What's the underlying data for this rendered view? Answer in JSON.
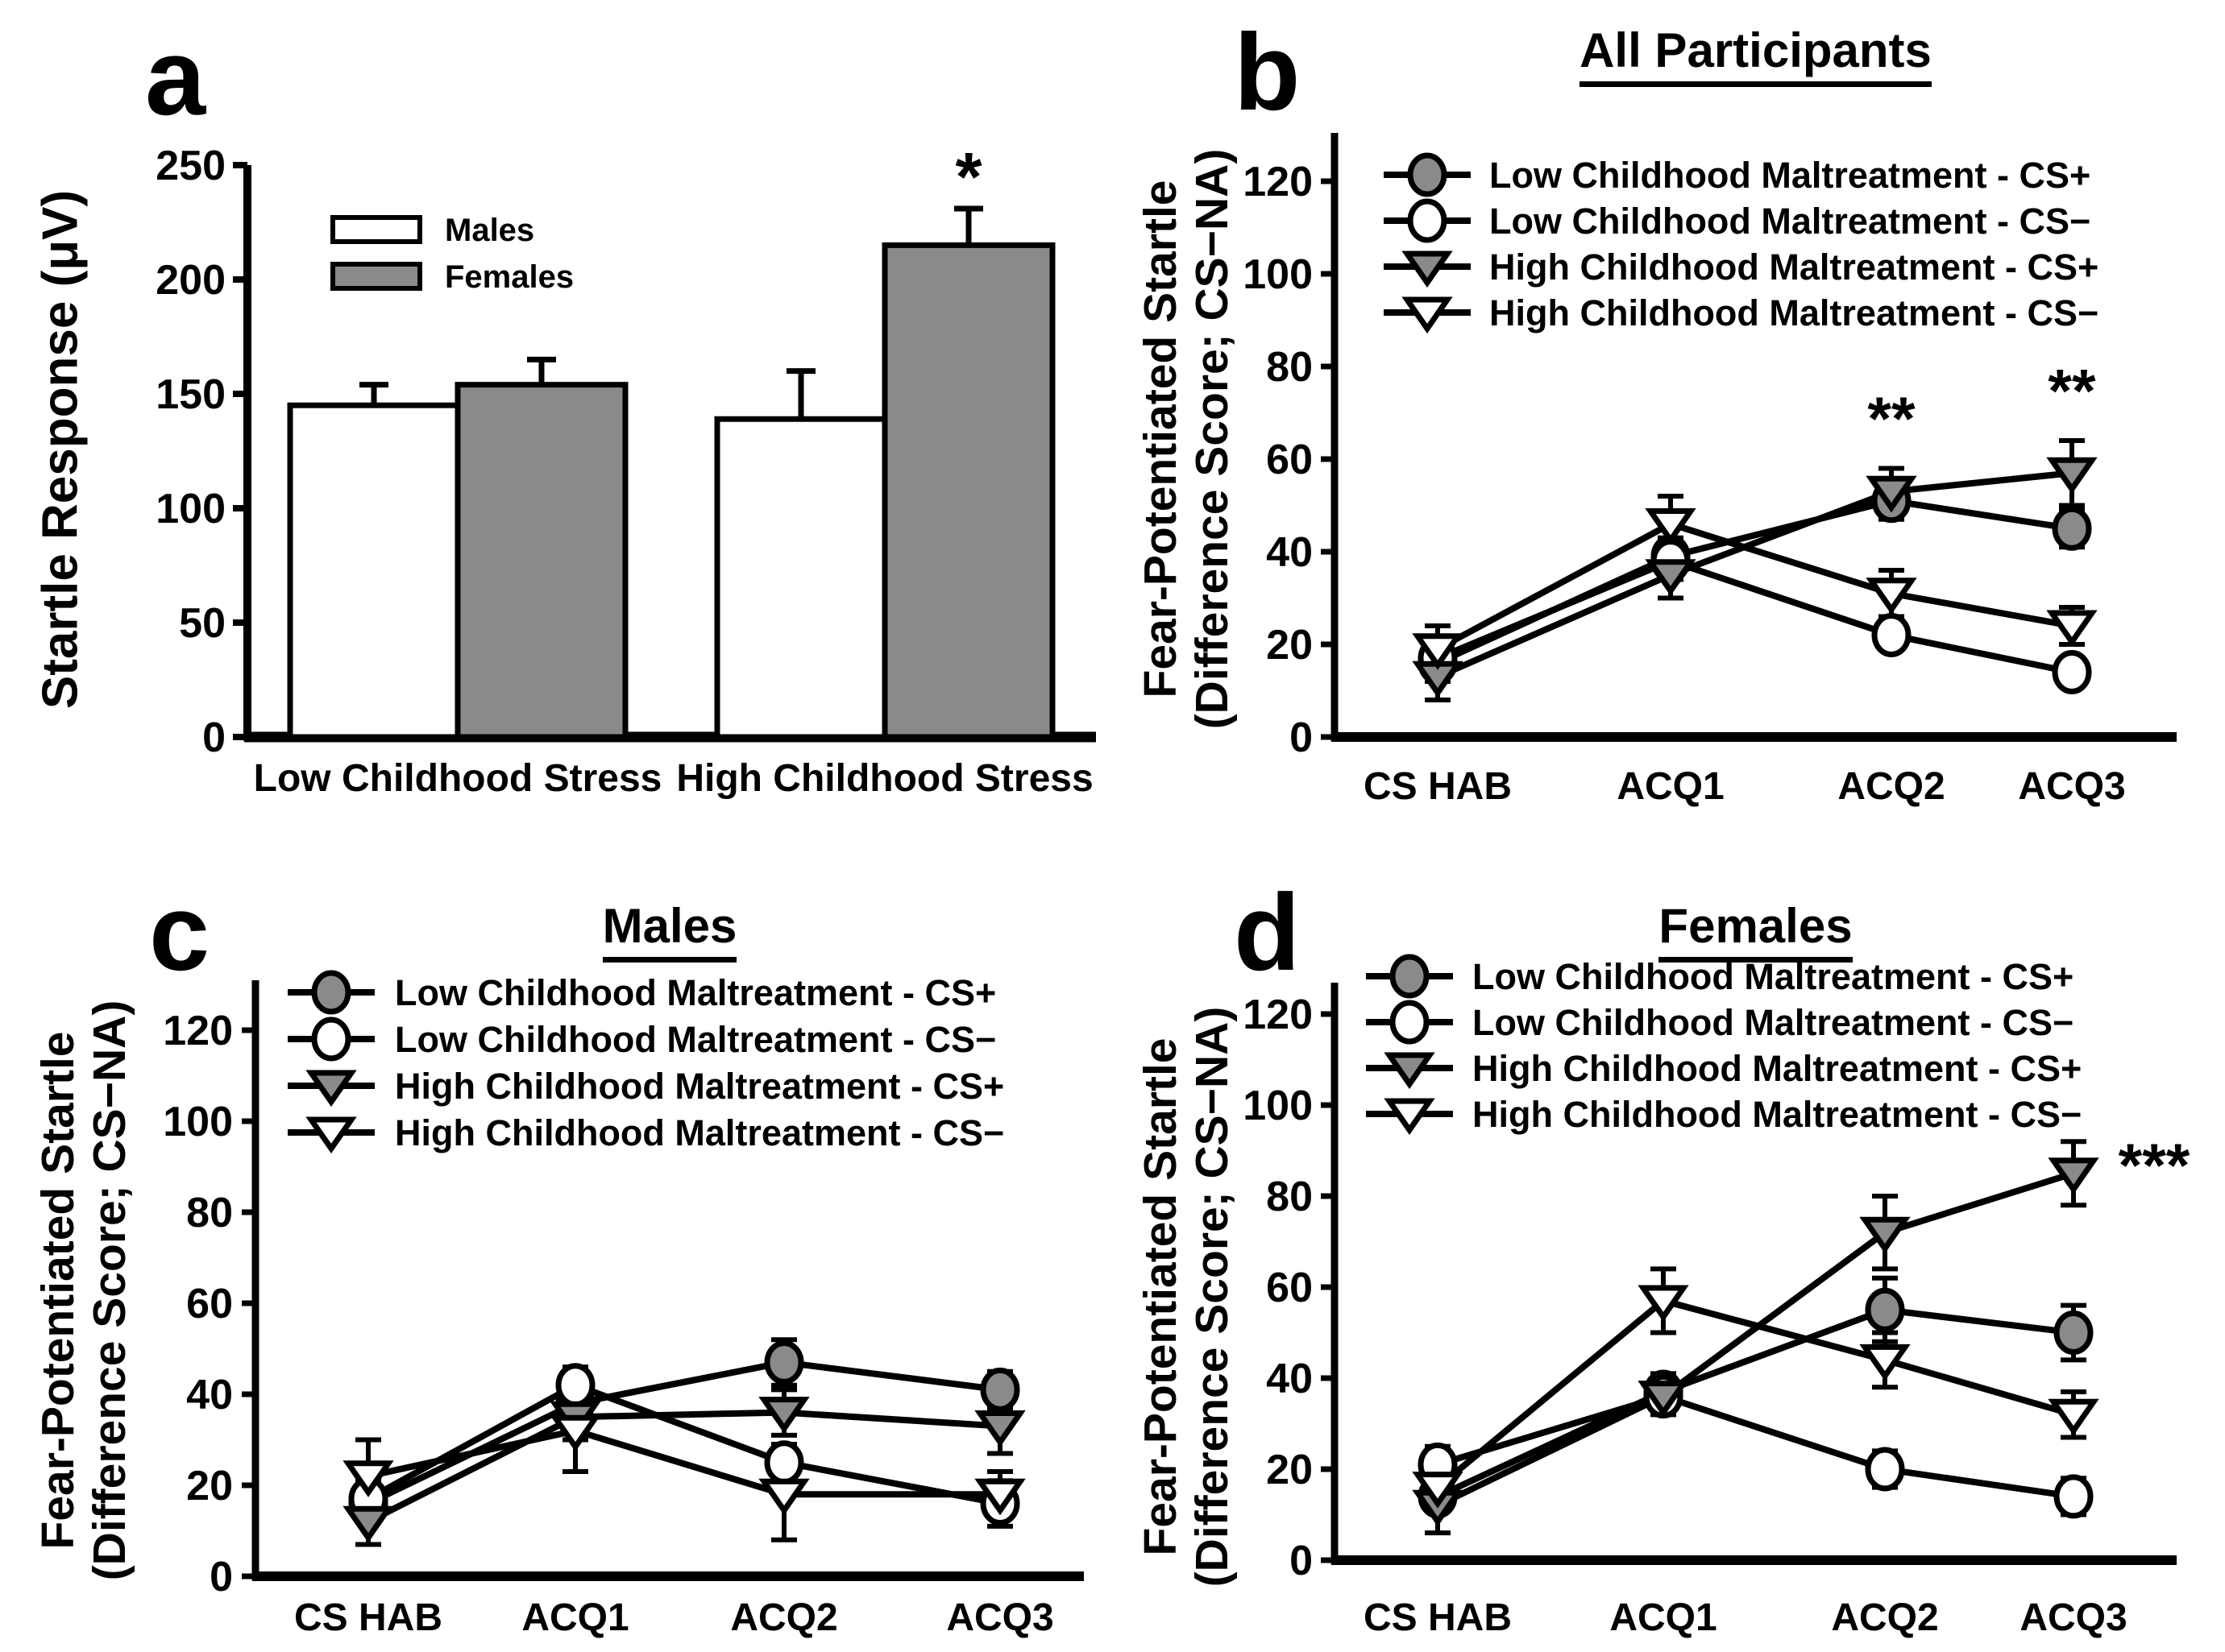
{
  "colors": {
    "gray_fill": "#8a8a8a",
    "white_fill": "#ffffff",
    "line": "#000000",
    "background": "#ffffff"
  },
  "chart_data": [
    {
      "type": "bar",
      "panel_letter": "a",
      "title": "",
      "ylabel": "Startle Response (μV)",
      "ylim": [
        0,
        250
      ],
      "yticks": [
        0,
        50,
        100,
        150,
        200,
        250
      ],
      "grid": false,
      "legend_position": "upper-left-inside",
      "categories": [
        "Low Childhood Stress",
        "High Childhood Stress"
      ],
      "series": [
        {
          "name": "Males",
          "fill": "#ffffff",
          "values": [
            145,
            139
          ],
          "errors": [
            9,
            21
          ]
        },
        {
          "name": "Females",
          "fill": "#8a8a8a",
          "values": [
            154,
            215
          ],
          "errors": [
            11,
            16
          ]
        }
      ],
      "annotations": [
        {
          "text": "*",
          "category_index": 1,
          "series_index": 1,
          "value": 243
        }
      ]
    },
    {
      "type": "line",
      "panel_letter": "b",
      "title": "All Participants",
      "ylabel_line1": "Fear-Potentiated Startle",
      "ylabel_line2": "(Difference Score; CS−NA)",
      "ylim": [
        0,
        130
      ],
      "yticks": [
        0,
        20,
        40,
        60,
        80,
        100,
        120
      ],
      "grid": false,
      "legend_position": "upper-left-inside",
      "categories": [
        "CS HAB",
        "ACQ1",
        "ACQ2",
        "ACQ3"
      ],
      "series": [
        {
          "name": "Low Childhood Maltreatment - CS+",
          "marker": "circle",
          "fill": "#8a8a8a",
          "values": [
            16,
            39,
            51,
            45
          ],
          "errors": [
            4,
            4,
            4,
            4
          ]
        },
        {
          "name": "Low Childhood Maltreatment - CS−",
          "marker": "circle",
          "fill": "#ffffff",
          "values": [
            17,
            38,
            22,
            14
          ],
          "errors": [
            3,
            4,
            3,
            3
          ]
        },
        {
          "name": "High Childhood Maltreatment - CS+",
          "marker": "triangle",
          "fill": "#8a8a8a",
          "values": [
            13,
            35,
            53,
            57
          ],
          "errors": [
            5,
            5,
            5,
            7
          ]
        },
        {
          "name": "High Childhood Maltreatment - CS−",
          "marker": "triangle",
          "fill": "#ffffff",
          "values": [
            19,
            46,
            31,
            24
          ],
          "errors": [
            5,
            6,
            5,
            4
          ]
        }
      ],
      "annotations": [
        {
          "text": "**",
          "x_index": 2,
          "dx": 0,
          "value": 68
        },
        {
          "text": "**",
          "x_index": 3,
          "dx": 0,
          "value": 74
        }
      ]
    },
    {
      "type": "line",
      "panel_letter": "c",
      "title": "Males",
      "ylabel_line1": "Fear-Potentiated Startle",
      "ylabel_line2": "(Difference Score; CS−NA)",
      "ylim": [
        0,
        130
      ],
      "yticks": [
        0,
        20,
        40,
        60,
        80,
        100,
        120
      ],
      "grid": false,
      "legend_position": "upper-left-inside",
      "categories": [
        "CS HAB",
        "ACQ1",
        "ACQ2",
        "ACQ3"
      ],
      "series": [
        {
          "name": "Low Childhood Maltreatment - CS+",
          "marker": "circle",
          "fill": "#8a8a8a",
          "values": [
            16,
            38,
            47,
            41
          ],
          "errors": [
            4,
            4,
            5,
            4
          ]
        },
        {
          "name": "Low Childhood Maltreatment - CS−",
          "marker": "circle",
          "fill": "#ffffff",
          "values": [
            17,
            42,
            25,
            16
          ],
          "errors": [
            4,
            4,
            4,
            5
          ]
        },
        {
          "name": "High Childhood Maltreatment - CS+",
          "marker": "triangle",
          "fill": "#8a8a8a",
          "values": [
            12,
            35,
            36,
            33
          ],
          "errors": [
            5,
            5,
            5,
            6
          ]
        },
        {
          "name": "High Childhood Maltreatment - CS−",
          "marker": "triangle",
          "fill": "#ffffff",
          "values": [
            22,
            32,
            18,
            18
          ],
          "errors": [
            8,
            9,
            10,
            5
          ]
        }
      ],
      "annotations": []
    },
    {
      "type": "line",
      "panel_letter": "d",
      "title": "Females",
      "ylabel_line1": "Fear-Potentiated Startle",
      "ylabel_line2": "(Difference Score; CS−NA)",
      "ylim": [
        0,
        130
      ],
      "yticks": [
        0,
        20,
        40,
        60,
        80,
        100,
        120
      ],
      "grid": false,
      "legend_position": "upper-left-inside",
      "categories": [
        "CS HAB",
        "ACQ1",
        "ACQ2",
        "ACQ3"
      ],
      "series": [
        {
          "name": "Low Childhood Maltreatment - CS+",
          "marker": "circle",
          "fill": "#8a8a8a",
          "values": [
            14,
            37,
            55,
            50
          ],
          "errors": [
            3,
            4,
            7,
            6
          ]
        },
        {
          "name": "Low Childhood Maltreatment - CS−",
          "marker": "circle",
          "fill": "#ffffff",
          "values": [
            21,
            36,
            20,
            14
          ],
          "errors": [
            4,
            4,
            4,
            4
          ]
        },
        {
          "name": "High Childhood Maltreatment - CS+",
          "marker": "triangle",
          "fill": "#8a8a8a",
          "values": [
            12,
            36,
            72,
            85
          ],
          "errors": [
            6,
            4,
            8,
            7
          ]
        },
        {
          "name": "High Childhood Maltreatment - CS−",
          "marker": "triangle",
          "fill": "#ffffff",
          "values": [
            16,
            57,
            44,
            32
          ],
          "errors": [
            4,
            7,
            6,
            5
          ]
        }
      ],
      "annotations": [
        {
          "text": "***",
          "x_index": 3,
          "dx": 100,
          "value": 86
        }
      ]
    }
  ]
}
